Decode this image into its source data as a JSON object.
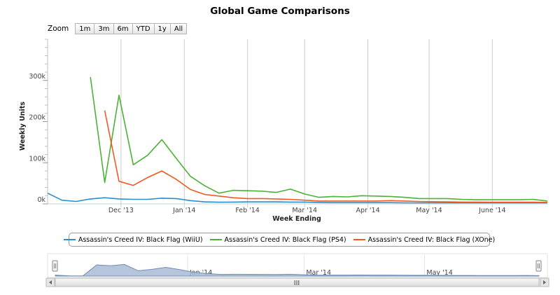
{
  "page": {
    "zoom_label": "Zoom",
    "zoom_buttons": [
      "1m",
      "3m",
      "6m",
      "YTD",
      "1y",
      "All"
    ]
  },
  "colors": {
    "wiiu": "#2a8fca",
    "ps4": "#4cb233",
    "xone": "#ef5a1f",
    "navigator_fill": "#a9bbd6",
    "navigator_line": "#6f8bb8",
    "grid": "#cccccc"
  },
  "chart_data": {
    "type": "line",
    "title": "Global Game Comparisons",
    "xlabel": "Week Ending",
    "ylabel": "Weekly Units",
    "x_start": "2013-10-26",
    "x_end": "2014-06-28",
    "ylim": [
      0,
      400000
    ],
    "y_ticks": [
      0,
      100000,
      200000,
      300000
    ],
    "y_tick_labels": [
      "0k",
      "100k",
      "200k",
      "300k"
    ],
    "x_ticks": [
      "2013-12-01",
      "2014-01-01",
      "2014-02-01",
      "2014-03-01",
      "2014-04-01",
      "2014-05-01",
      "2014-06-01"
    ],
    "x_tick_labels": [
      "Dec '13",
      "Jan '14",
      "Feb '14",
      "Mar '14",
      "Apr '14",
      "May '14",
      "June '14"
    ],
    "legend_position": "bottom",
    "grid": "vertical",
    "series": [
      {
        "name": "Assassin's Creed IV: Black Flag (WiiU)",
        "color_key": "wiiu",
        "points": [
          [
            "2013-10-26",
            26000
          ],
          [
            "2013-11-02",
            9000
          ],
          [
            "2013-11-09",
            6000
          ],
          [
            "2013-11-16",
            12000
          ],
          [
            "2013-11-23",
            15000
          ],
          [
            "2013-11-30",
            12000
          ],
          [
            "2013-12-07",
            11000
          ],
          [
            "2013-12-14",
            11000
          ],
          [
            "2013-12-21",
            14000
          ],
          [
            "2013-12-28",
            13000
          ],
          [
            "2014-01-04",
            8000
          ],
          [
            "2014-01-11",
            5000
          ],
          [
            "2014-01-18",
            4000
          ],
          [
            "2014-01-25",
            4500
          ],
          [
            "2014-02-01",
            5000
          ],
          [
            "2014-02-08",
            5000
          ],
          [
            "2014-02-15",
            5000
          ],
          [
            "2014-02-22",
            4500
          ],
          [
            "2014-03-01",
            4500
          ],
          [
            "2014-03-08",
            3500
          ],
          [
            "2014-03-15",
            3000
          ],
          [
            "2014-03-22",
            3000
          ],
          [
            "2014-03-29",
            3000
          ],
          [
            "2014-04-05",
            3000
          ],
          [
            "2014-04-12",
            3000
          ],
          [
            "2014-04-19",
            2500
          ],
          [
            "2014-04-26",
            2500
          ],
          [
            "2014-05-03",
            2500
          ],
          [
            "2014-05-10",
            2500
          ],
          [
            "2014-05-17",
            2500
          ],
          [
            "2014-05-24",
            2500
          ],
          [
            "2014-05-31",
            2500
          ],
          [
            "2014-06-07",
            2500
          ],
          [
            "2014-06-14",
            2500
          ],
          [
            "2014-06-21",
            2500
          ],
          [
            "2014-06-28",
            2500
          ]
        ]
      },
      {
        "name": "Assassin's Creed IV: Black Flag (PS4)",
        "color_key": "ps4",
        "points": [
          [
            "2013-11-16",
            308000
          ],
          [
            "2013-11-23",
            52000
          ],
          [
            "2013-11-30",
            264000
          ],
          [
            "2013-12-07",
            95000
          ],
          [
            "2013-12-14",
            118000
          ],
          [
            "2013-12-21",
            156000
          ],
          [
            "2013-12-28",
            111000
          ],
          [
            "2014-01-04",
            67000
          ],
          [
            "2014-01-11",
            44000
          ],
          [
            "2014-01-18",
            26000
          ],
          [
            "2014-01-25",
            33000
          ],
          [
            "2014-02-01",
            32000
          ],
          [
            "2014-02-08",
            31000
          ],
          [
            "2014-02-15",
            28000
          ],
          [
            "2014-02-22",
            36000
          ],
          [
            "2014-03-01",
            24000
          ],
          [
            "2014-03-08",
            16000
          ],
          [
            "2014-03-15",
            18000
          ],
          [
            "2014-03-22",
            17000
          ],
          [
            "2014-03-29",
            20000
          ],
          [
            "2014-04-05",
            19000
          ],
          [
            "2014-04-12",
            18000
          ],
          [
            "2014-04-19",
            16000
          ],
          [
            "2014-04-26",
            13000
          ],
          [
            "2014-05-03",
            13000
          ],
          [
            "2014-05-10",
            13000
          ],
          [
            "2014-05-17",
            11000
          ],
          [
            "2014-05-24",
            10000
          ],
          [
            "2014-05-31",
            10000
          ],
          [
            "2014-06-07",
            10000
          ],
          [
            "2014-06-14",
            10000
          ],
          [
            "2014-06-21",
            11000
          ],
          [
            "2014-06-28",
            7000
          ]
        ]
      },
      {
        "name": "Assassin's Creed IV: Black Flag (XOne)",
        "color_key": "xone",
        "points": [
          [
            "2013-11-23",
            227000
          ],
          [
            "2013-11-30",
            55000
          ],
          [
            "2013-12-07",
            45000
          ],
          [
            "2013-12-14",
            64000
          ],
          [
            "2013-12-21",
            80000
          ],
          [
            "2013-12-28",
            60000
          ],
          [
            "2014-01-04",
            35000
          ],
          [
            "2014-01-11",
            23000
          ],
          [
            "2014-01-18",
            19000
          ],
          [
            "2014-01-25",
            15000
          ],
          [
            "2014-02-01",
            13000
          ],
          [
            "2014-02-08",
            13000
          ],
          [
            "2014-02-15",
            12000
          ],
          [
            "2014-02-22",
            11000
          ],
          [
            "2014-03-01",
            9000
          ],
          [
            "2014-03-08",
            7000
          ],
          [
            "2014-03-15",
            7000
          ],
          [
            "2014-03-22",
            7000
          ],
          [
            "2014-03-29",
            7000
          ],
          [
            "2014-04-05",
            7000
          ],
          [
            "2014-04-12",
            8000
          ],
          [
            "2014-04-19",
            7000
          ],
          [
            "2014-04-26",
            6000
          ],
          [
            "2014-05-03",
            5500
          ],
          [
            "2014-05-10",
            5000
          ],
          [
            "2014-05-17",
            4500
          ],
          [
            "2014-05-24",
            4500
          ],
          [
            "2014-05-31",
            4000
          ],
          [
            "2014-06-07",
            4000
          ],
          [
            "2014-06-14",
            4000
          ],
          [
            "2014-06-21",
            4000
          ],
          [
            "2014-06-28",
            3500
          ]
        ]
      }
    ]
  },
  "navigator": {
    "x_tick_labels": [
      "Jan '14",
      "Mar '14",
      "May '14"
    ],
    "x_ticks": [
      "2014-01-01",
      "2014-03-01",
      "2014-05-01"
    ],
    "scrollbar_grip": "III"
  }
}
